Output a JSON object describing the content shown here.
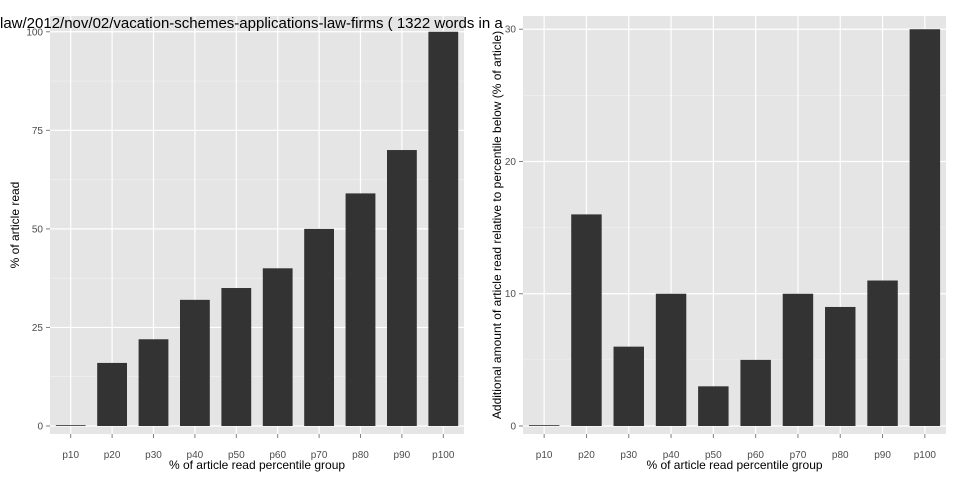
{
  "chart_data": [
    {
      "type": "bar",
      "title": "law/2012/nov/02/vacation-schemes-applications-law-firms ( 1322 words in a",
      "xlabel": "% of article read percentile group",
      "ylabel": "% of article read",
      "categories": [
        "p10",
        "p20",
        "p30",
        "p40",
        "p50",
        "p60",
        "p70",
        "p80",
        "p90",
        "p100"
      ],
      "values": [
        0,
        16,
        22,
        32,
        35,
        40,
        50,
        59,
        70,
        100
      ],
      "ylim": [
        0,
        104
      ],
      "yticks": [
        "0",
        "25",
        "50",
        "75",
        "100"
      ],
      "grid": true,
      "colors": {
        "bar": "#333333",
        "panel": "#e5e5e5",
        "grid": "#ffffff",
        "grid_minor": "#f2f2f2",
        "text": "#4d4d4d"
      }
    },
    {
      "type": "bar",
      "title": "",
      "xlabel": "% of article read percentile group",
      "ylabel": "Additional amount of article read relative to percentile below (% of article)",
      "categories": [
        "p10",
        "p20",
        "p30",
        "p40",
        "p50",
        "p60",
        "p70",
        "p80",
        "p90",
        "p100"
      ],
      "values": [
        0,
        16,
        6,
        10,
        3,
        5,
        10,
        9,
        11,
        30
      ],
      "ylim": [
        0,
        31
      ],
      "yticks": [
        "0",
        "10",
        "20",
        "30"
      ],
      "grid": true,
      "colors": {
        "bar": "#333333",
        "panel": "#e5e5e5",
        "grid": "#ffffff",
        "grid_minor": "#f2f2f2",
        "text": "#4d4d4d"
      }
    }
  ]
}
